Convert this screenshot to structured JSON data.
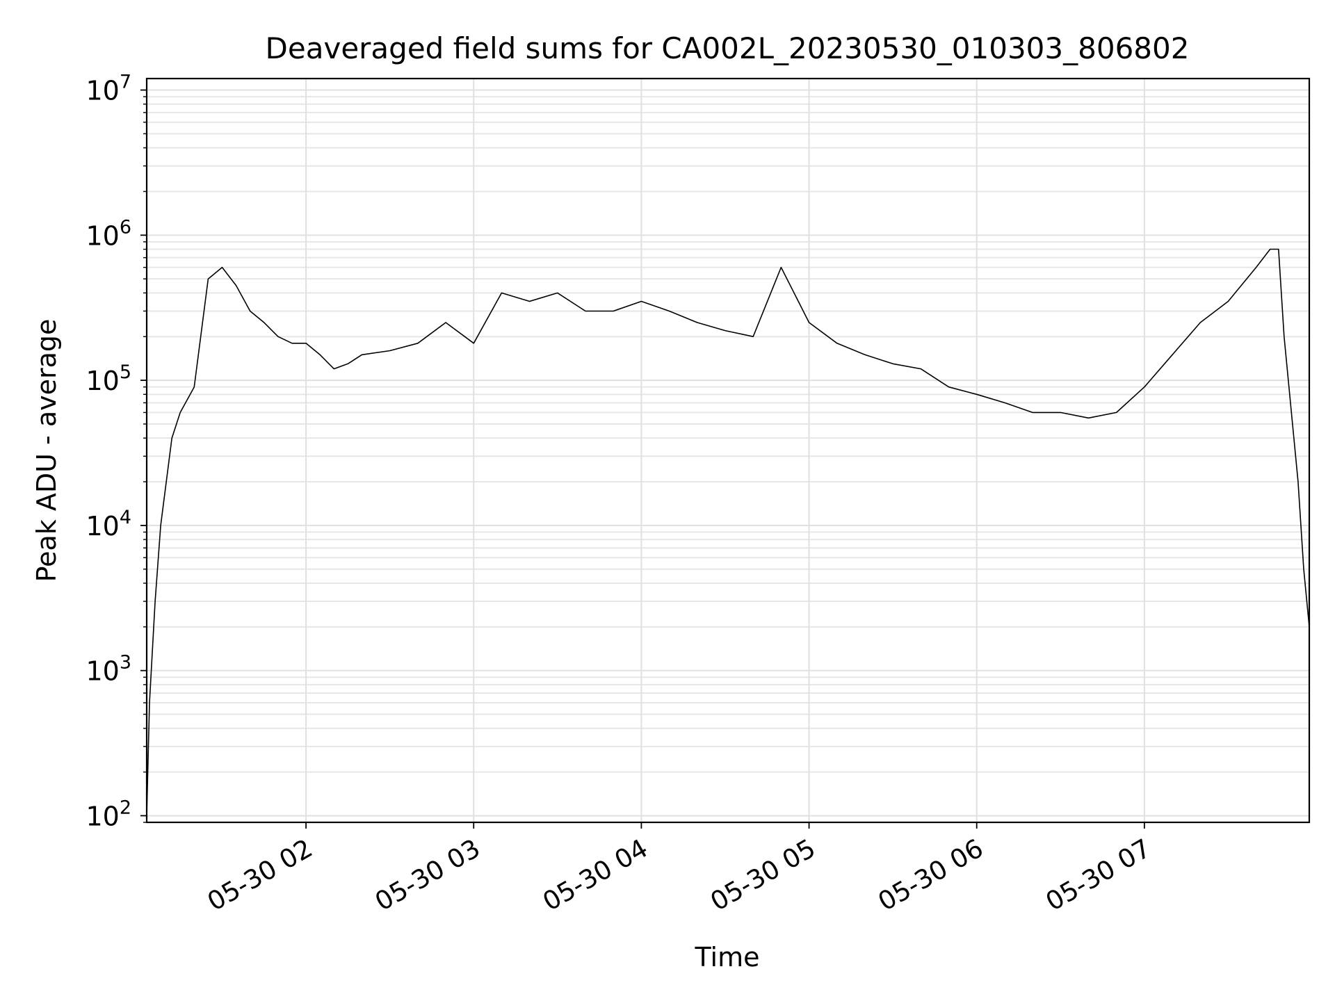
{
  "chart_data": {
    "type": "line",
    "title": "Deaveraged field sums for CA002L_20230530_010303_806802",
    "xlabel": "Time",
    "ylabel": "Peak ADU - average",
    "xscale": "time",
    "yscale": "log",
    "xlim": [
      "2023-05-30 01:03",
      "2023-05-30 07:59"
    ],
    "ylim": [
      90,
      12000000
    ],
    "grid": true,
    "legend": "none",
    "x_ticks": [
      {
        "value": "2023-05-30 02:00",
        "label": "05-30 02"
      },
      {
        "value": "2023-05-30 03:00",
        "label": "05-30 03"
      },
      {
        "value": "2023-05-30 04:00",
        "label": "05-30 04"
      },
      {
        "value": "2023-05-30 05:00",
        "label": "05-30 05"
      },
      {
        "value": "2023-05-30 06:00",
        "label": "05-30 06"
      },
      {
        "value": "2023-05-30 07:00",
        "label": "05-30 07"
      }
    ],
    "y_ticks": [
      {
        "value": 100,
        "base": "10",
        "exp": "2"
      },
      {
        "value": 1000,
        "base": "10",
        "exp": "3"
      },
      {
        "value": 10000,
        "base": "10",
        "exp": "4"
      },
      {
        "value": 100000,
        "base": "10",
        "exp": "5"
      },
      {
        "value": 1000000,
        "base": "10",
        "exp": "6"
      },
      {
        "value": 10000000,
        "base": "10",
        "exp": "7"
      }
    ],
    "series": [
      {
        "color": "#000000",
        "x": [
          "2023-05-30 01:03",
          "2023-05-30 01:04",
          "2023-05-30 01:06",
          "2023-05-30 01:08",
          "2023-05-30 01:12",
          "2023-05-30 01:15",
          "2023-05-30 01:20",
          "2023-05-30 01:25",
          "2023-05-30 01:30",
          "2023-05-30 01:35",
          "2023-05-30 01:40",
          "2023-05-30 01:45",
          "2023-05-30 01:50",
          "2023-05-30 01:55",
          "2023-05-30 02:00",
          "2023-05-30 02:05",
          "2023-05-30 02:10",
          "2023-05-30 02:15",
          "2023-05-30 02:20",
          "2023-05-30 02:30",
          "2023-05-30 02:40",
          "2023-05-30 02:50",
          "2023-05-30 03:00",
          "2023-05-30 03:10",
          "2023-05-30 03:20",
          "2023-05-30 03:30",
          "2023-05-30 03:40",
          "2023-05-30 03:50",
          "2023-05-30 04:00",
          "2023-05-30 04:10",
          "2023-05-30 04:20",
          "2023-05-30 04:30",
          "2023-05-30 04:40",
          "2023-05-30 04:50",
          "2023-05-30 05:00",
          "2023-05-30 05:10",
          "2023-05-30 05:20",
          "2023-05-30 05:30",
          "2023-05-30 05:40",
          "2023-05-30 05:50",
          "2023-05-30 06:00",
          "2023-05-30 06:10",
          "2023-05-30 06:20",
          "2023-05-30 06:30",
          "2023-05-30 06:40",
          "2023-05-30 06:50",
          "2023-05-30 07:00",
          "2023-05-30 07:10",
          "2023-05-30 07:20",
          "2023-05-30 07:30",
          "2023-05-30 07:40",
          "2023-05-30 07:45",
          "2023-05-30 07:48",
          "2023-05-30 07:50",
          "2023-05-30 07:53",
          "2023-05-30 07:55",
          "2023-05-30 07:57",
          "2023-05-30 07:59"
        ],
        "y": [
          100,
          600,
          3000,
          10000,
          40000,
          60000,
          90000,
          500000,
          600000,
          450000,
          300000,
          250000,
          200000,
          180000,
          180000,
          150000,
          120000,
          130000,
          150000,
          160000,
          180000,
          250000,
          180000,
          400000,
          350000,
          400000,
          300000,
          300000,
          350000,
          300000,
          250000,
          220000,
          200000,
          600000,
          250000,
          180000,
          150000,
          130000,
          120000,
          90000,
          80000,
          70000,
          60000,
          60000,
          55000,
          60000,
          90000,
          150000,
          250000,
          350000,
          600000,
          800000,
          800000,
          200000,
          50000,
          20000,
          5000,
          2000
        ]
      }
    ]
  }
}
